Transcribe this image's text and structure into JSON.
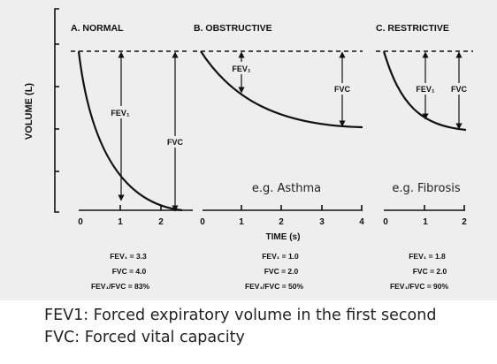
{
  "figure": {
    "y_axis_label": "VOLUME (L)",
    "x_axis_label": "TIME (s)",
    "colors": {
      "background": "#eeeeee",
      "ink": "#111111"
    },
    "panels": [
      {
        "title": "A. NORMAL",
        "curve_labels": [
          "FEV₁",
          "FVC"
        ],
        "example": "",
        "x_ticks": [
          "0",
          "1",
          "2"
        ],
        "stats": [
          "FEV₁ = 3.3",
          "FVC = 4.0",
          "FEV₁/FVC = 83%"
        ],
        "curve_shape": "fast full exhalation to plateau within ~2 s"
      },
      {
        "title": "B. OBSTRUCTIVE",
        "curve_labels": [
          "FEV₁",
          "FVC"
        ],
        "example": "e.g. Asthma",
        "x_ticks": [
          "0",
          "1",
          "2",
          "3",
          "4"
        ],
        "stats": [
          "FEV₁ = 1.0",
          "FVC = 2.0",
          "FEV₁/FVC = 50%"
        ],
        "curve_shape": "slow exhalation, plateau near 4 s"
      },
      {
        "title": "C. RESTRICTIVE",
        "curve_labels": [
          "FEV₁",
          "FVC"
        ],
        "example": "e.g. Fibrosis",
        "x_ticks": [
          "0",
          "1",
          "2"
        ],
        "stats": [
          "FEV₁ = 1.8",
          "FVC = 2.0",
          "FEV₁/FVC = 90%"
        ],
        "curve_shape": "rapid exhalation of small volume"
      }
    ]
  },
  "caption": {
    "line1": "FEV1: Forced expiratory volume in the first second",
    "line2": "FVC: Forced vital capacity"
  }
}
